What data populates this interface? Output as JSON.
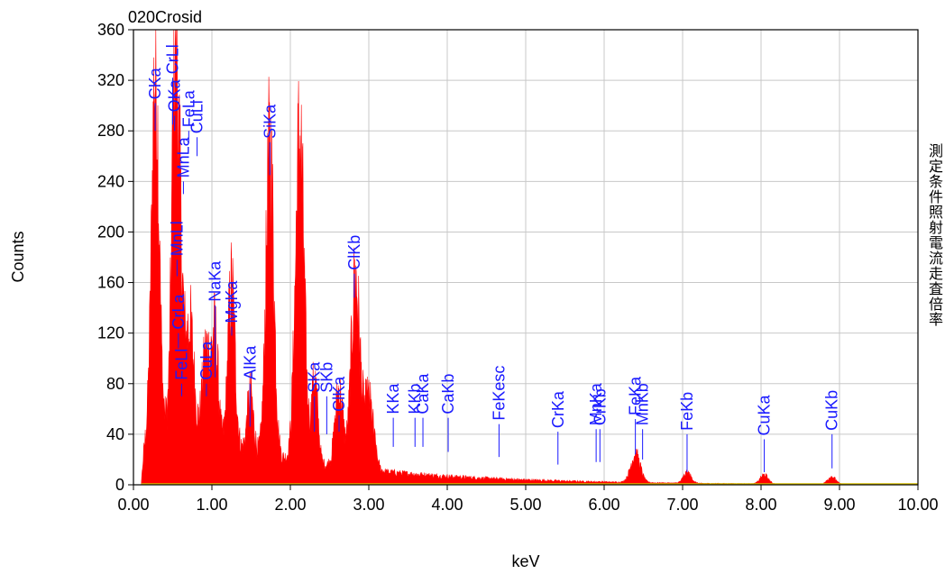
{
  "chart_data": {
    "type": "area",
    "title": "020Crosid",
    "xlabel": "keV",
    "ylabel": "Counts",
    "xlim": [
      0,
      10
    ],
    "ylim": [
      0,
      360
    ],
    "xticks": [
      "0.00",
      "1.00",
      "2.00",
      "3.00",
      "4.00",
      "5.00",
      "6.00",
      "7.00",
      "8.00",
      "9.00",
      "10.00"
    ],
    "yticks": [
      "0",
      "40",
      "80",
      "120",
      "160",
      "200",
      "240",
      "280",
      "320",
      "360"
    ],
    "grid": true,
    "series_color": "#ff0000",
    "marker_color": "#1a1aff",
    "peaks": [
      {
        "x": 0.28,
        "y": 280,
        "w": 0.045
      },
      {
        "x": 0.53,
        "y": 285,
        "w": 0.04
      },
      {
        "x": 0.6,
        "y": 110,
        "w": 0.04
      },
      {
        "x": 0.72,
        "y": 85,
        "w": 0.05
      },
      {
        "x": 0.93,
        "y": 70,
        "w": 0.05
      },
      {
        "x": 1.04,
        "y": 80,
        "w": 0.04
      },
      {
        "x": 1.25,
        "y": 125,
        "w": 0.045
      },
      {
        "x": 1.49,
        "y": 45,
        "w": 0.04
      },
      {
        "x": 1.74,
        "y": 238,
        "w": 0.05
      },
      {
        "x": 2.12,
        "y": 252,
        "w": 0.055
      },
      {
        "x": 2.31,
        "y": 65,
        "w": 0.04
      },
      {
        "x": 2.62,
        "y": 60,
        "w": 0.05
      },
      {
        "x": 2.83,
        "y": 148,
        "w": 0.055
      },
      {
        "x": 3.0,
        "y": 55,
        "w": 0.06
      },
      {
        "x": 6.4,
        "y": 22,
        "w": 0.06
      },
      {
        "x": 7.06,
        "y": 8,
        "w": 0.05
      },
      {
        "x": 8.04,
        "y": 7,
        "w": 0.05
      },
      {
        "x": 8.9,
        "y": 6,
        "w": 0.05
      }
    ],
    "markers": [
      {
        "label": "CKa",
        "x": 0.277,
        "top": 302,
        "bottom": 280
      },
      {
        "label": "OKa",
        "x": 0.525,
        "top": 292,
        "bottom": 280
      },
      {
        "label": "CrLl",
        "x": 0.5,
        "top": 322,
        "bottom": 285
      },
      {
        "label": "FeLa",
        "x": 0.705,
        "top": 280,
        "bottom": 270
      },
      {
        "label": "CuLl",
        "x": 0.811,
        "top": 275,
        "bottom": 260
      },
      {
        "label": "MnLa",
        "x": 0.637,
        "top": 240,
        "bottom": 230
      },
      {
        "label": "MnLl",
        "x": 0.556,
        "top": 178,
        "bottom": 165
      },
      {
        "label": "CrLa",
        "x": 0.573,
        "top": 120,
        "bottom": 108
      },
      {
        "label": "FeLl",
        "x": 0.615,
        "top": 80,
        "bottom": 70
      },
      {
        "label": "CuLa",
        "x": 0.93,
        "top": 80,
        "bottom": 70
      },
      {
        "label": "NaKa",
        "x": 1.041,
        "top": 142,
        "bottom": 85
      },
      {
        "label": "MgKa",
        "x": 1.253,
        "top": 125,
        "bottom": 118
      },
      {
        "label": "AlKa",
        "x": 1.486,
        "top": 80,
        "bottom": 46
      },
      {
        "label": "SiKa",
        "x": 1.739,
        "top": 271,
        "bottom": 245
      },
      {
        "label": "SKa",
        "x": 2.307,
        "top": 70,
        "bottom": 42
      },
      {
        "label": "SKb",
        "x": 2.464,
        "top": 70,
        "bottom": 40
      },
      {
        "label": "ClKa",
        "x": 2.621,
        "top": 55,
        "bottom": 42
      },
      {
        "label": "ClKb",
        "x": 2.815,
        "top": 167,
        "bottom": 148
      },
      {
        "label": "KKa",
        "x": 3.312,
        "top": 53,
        "bottom": 30
      },
      {
        "label": "KKb",
        "x": 3.589,
        "top": 53,
        "bottom": 30
      },
      {
        "label": "CaKa",
        "x": 3.69,
        "top": 53,
        "bottom": 30
      },
      {
        "label": "CaKb",
        "x": 4.012,
        "top": 53,
        "bottom": 26
      },
      {
        "label": "FeKesc",
        "x": 4.66,
        "top": 48,
        "bottom": 22
      },
      {
        "label": "CrKa",
        "x": 5.411,
        "top": 42,
        "bottom": 16
      },
      {
        "label": "CrKb",
        "x": 5.946,
        "top": 44,
        "bottom": 18
      },
      {
        "label": "MnKa",
        "x": 5.898,
        "top": 44,
        "bottom": 18
      },
      {
        "label": "FeKa",
        "x": 6.398,
        "top": 52,
        "bottom": 24
      },
      {
        "label": "MnKb",
        "x": 6.49,
        "top": 44,
        "bottom": 20
      },
      {
        "label": "FeKb",
        "x": 7.057,
        "top": 40,
        "bottom": 10
      },
      {
        "label": "CuKa",
        "x": 8.041,
        "top": 36,
        "bottom": 10
      },
      {
        "label": "CuKb",
        "x": 8.905,
        "top": 40,
        "bottom": 13
      }
    ]
  },
  "side_note": "測定条件 照射電流 走査倍率"
}
